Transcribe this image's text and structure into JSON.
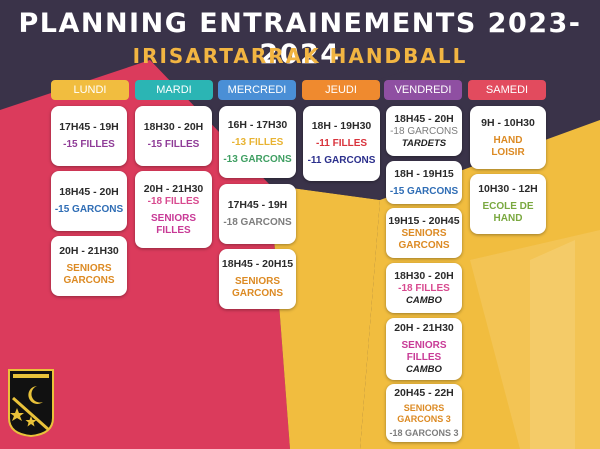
{
  "header": {
    "title": "PLANNING ENTRAINEMENTS 2023-2024",
    "subtitle": "IRISARTARRAK HANDBALL"
  },
  "colors": {
    "lundi": "#f1bd3f",
    "mardi": "#2bb5b4",
    "mercredi": "#4a8fd6",
    "jeudi": "#ef8a2f",
    "vendredi": "#8f4fa2",
    "samedi": "#e24b5e",
    "title_yellow": "#f2b542"
  },
  "days": {
    "lundi": "LUNDI",
    "mardi": "MARDI",
    "mercredi": "MERCREDI",
    "jeudi": "JEUDI",
    "vendredi": "VENDREDI",
    "samedi": "SAMEDI"
  },
  "lundi": [
    {
      "time": "17H45 - 19H",
      "group": "-15 FILLES"
    },
    {
      "time": "18H45 - 20H",
      "group": "-15 GARCONS"
    },
    {
      "time": "20H - 21H30",
      "group1": "SENIORS",
      "group2": "GARCONS"
    }
  ],
  "mardi": [
    {
      "time": "18H30 - 20H",
      "group": "-15 FILLES"
    },
    {
      "time": "20H - 21H30",
      "group": "-18 FILLES",
      "group2a": "SENIORS",
      "group2b": "FILLES"
    }
  ],
  "mercredi": [
    {
      "time": "16H - 17H30",
      "group": "-13 FILLES",
      "group2": "-13 GARCONS"
    },
    {
      "time": "17H45 - 19H",
      "group": "-18 GARCONS"
    },
    {
      "time": "18H45 - 20H15",
      "group1": "SENIORS",
      "group2": "GARCONS"
    }
  ],
  "jeudi": [
    {
      "time": "18H - 19H30",
      "group": "-11 FILLES",
      "group2": "-11 GARCONS"
    }
  ],
  "vendredi": [
    {
      "time": "18H45 - 20H",
      "group": "-18 GARCONS",
      "location": "TARDETS"
    },
    {
      "time": "18H - 19H15",
      "group": "-15 GARCONS"
    },
    {
      "time": "19H15 - 20H45",
      "group1": "SENIORS",
      "group2": "GARCONS"
    },
    {
      "time": "18H30 - 20H",
      "group": "-18 FILLES",
      "location": "CAMBO"
    },
    {
      "time": "20H - 21H30",
      "group1": "SENIORS",
      "group2": "FILLES",
      "location": "CAMBO"
    },
    {
      "time": "20H45 - 22H",
      "group1": "SENIORS",
      "group2": "GARCONS 3",
      "group3": "-18 GARCONS 3"
    }
  ],
  "samedi": [
    {
      "time": "9H - 10H30",
      "group1": "HAND",
      "group2": "LOISIR"
    },
    {
      "time": "10H30 - 12H",
      "group1": "ECOLE DE",
      "group2": "HAND"
    }
  ]
}
